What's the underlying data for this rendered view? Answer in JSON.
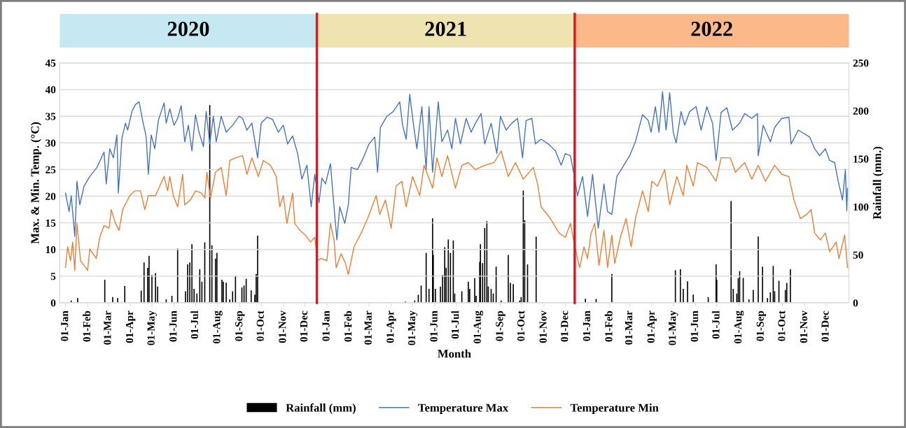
{
  "chart_data": {
    "type": "line",
    "xlabel": "Month",
    "ylabel": "Max. & Min. Temp. (°C)",
    "y2label": "Rainfall (mm.)",
    "xlim": [
      "2019-12-24",
      "2023-01-02"
    ],
    "xticks": [
      {
        "value": "2020-01-01",
        "label": "01-Jan"
      },
      {
        "value": "2020-02-01",
        "label": "01-Feb"
      },
      {
        "value": "2020-03-01",
        "label": "01-Mar"
      },
      {
        "value": "2020-04-01",
        "label": "01-Apr"
      },
      {
        "value": "2020-05-01",
        "label": "01-May"
      },
      {
        "value": "2020-06-01",
        "label": "01-Jun"
      },
      {
        "value": "2020-07-01",
        "label": "01-Jul"
      },
      {
        "value": "2020-08-01",
        "label": "01-Aug"
      },
      {
        "value": "2020-09-01",
        "label": "01-Sep"
      },
      {
        "value": "2020-10-01",
        "label": "01-Oct"
      },
      {
        "value": "2020-11-01",
        "label": "01-Nov"
      },
      {
        "value": "2020-12-01",
        "label": "01-Dec"
      },
      {
        "value": "2021-01-01",
        "label": "01-Jan"
      },
      {
        "value": "2021-02-01",
        "label": "01-Feb"
      },
      {
        "value": "2021-03-01",
        "label": "01-Mar"
      },
      {
        "value": "2021-04-01",
        "label": "01-Apr"
      },
      {
        "value": "2021-05-01",
        "label": "01-May"
      },
      {
        "value": "2021-06-01",
        "label": "01-Jun"
      },
      {
        "value": "2021-07-01",
        "label": "01-Jul"
      },
      {
        "value": "2021-08-01",
        "label": "01-Aug"
      },
      {
        "value": "2021-09-01",
        "label": "01-Sep"
      },
      {
        "value": "2021-10-01",
        "label": "01-Oct"
      },
      {
        "value": "2021-11-01",
        "label": "01-Nov"
      },
      {
        "value": "2021-12-01",
        "label": "01-Dec"
      },
      {
        "value": "2022-01-01",
        "label": "01-Jan"
      },
      {
        "value": "2022-02-01",
        "label": "01-Feb"
      },
      {
        "value": "2022-03-01",
        "label": "01-Mar"
      },
      {
        "value": "2022-04-01",
        "label": "01-Apr"
      },
      {
        "value": "2022-05-01",
        "label": "01-May"
      },
      {
        "value": "2022-06-01",
        "label": "01-Jun"
      },
      {
        "value": "2022-07-01",
        "label": "01-Jul"
      },
      {
        "value": "2022-08-01",
        "label": "01-Aug"
      },
      {
        "value": "2022-09-01",
        "label": "01-Sep"
      },
      {
        "value": "2022-10-01",
        "label": "01-Oct"
      },
      {
        "value": "2022-11-01",
        "label": "01-Nov"
      },
      {
        "value": "2022-12-01",
        "label": "01-Dec"
      }
    ],
    "ylim": [
      0,
      45
    ],
    "yticks": [
      0,
      5,
      10,
      15,
      20,
      25,
      30,
      35,
      40,
      45
    ],
    "y2lim": [
      0,
      250
    ],
    "y2ticks": [
      0,
      50,
      100,
      150,
      200,
      250
    ],
    "grid": "y",
    "legend": "bottom",
    "marker": "none",
    "ref_lines": [
      {
        "axis": "x",
        "value": "2020-12-18",
        "color": "#e8141d"
      },
      {
        "axis": "x",
        "value": "2021-12-14",
        "color": "#e8141d"
      }
    ],
    "annotations": [
      "2020",
      "2021",
      "2022"
    ],
    "series": [
      {
        "name": "Rainfall (mm)",
        "type": "bar",
        "axis": "y2",
        "color": "#000000",
        "x": [
          "2020-01-09",
          "2020-01-18",
          "2020-02-25",
          "2020-03-07",
          "2020-03-14",
          "2020-03-24",
          "2020-04-16",
          "2020-04-20",
          "2020-04-25",
          "2020-04-27",
          "2020-05-01",
          "2020-05-06",
          "2020-05-09",
          "2020-05-21",
          "2020-05-29",
          "2020-06-06",
          "2020-06-17",
          "2020-06-20",
          "2020-06-23",
          "2020-06-26",
          "2020-06-29",
          "2020-07-03",
          "2020-07-07",
          "2020-07-10",
          "2020-07-14",
          "2020-07-21",
          "2020-07-24",
          "2020-07-29",
          "2020-07-31",
          "2020-08-07",
          "2020-08-09",
          "2020-08-13",
          "2020-08-18",
          "2020-08-22",
          "2020-08-26",
          "2020-09-04",
          "2020-09-07",
          "2020-09-10",
          "2020-09-17",
          "2020-09-22",
          "2020-09-24",
          "2020-09-26",
          "2021-04-21",
          "2021-05-04",
          "2021-05-09",
          "2021-05-13",
          "2021-05-20",
          "2021-05-24",
          "2021-05-29",
          "2021-05-30",
          "2021-06-02",
          "2021-06-09",
          "2021-06-12",
          "2021-06-15",
          "2021-06-17",
          "2021-06-20",
          "2021-06-23",
          "2021-06-27",
          "2021-06-29",
          "2021-07-09",
          "2021-07-18",
          "2021-07-20",
          "2021-07-27",
          "2021-07-29",
          "2021-08-03",
          "2021-08-04",
          "2021-08-07",
          "2021-08-10",
          "2021-08-13",
          "2021-08-15",
          "2021-08-19",
          "2021-08-22",
          "2021-08-26",
          "2021-09-02",
          "2021-09-12",
          "2021-09-15",
          "2021-09-19",
          "2021-09-28",
          "2021-09-30",
          "2021-10-03",
          "2021-10-05",
          "2021-10-09",
          "2021-10-21",
          "2021-12-29",
          "2022-01-13",
          "2022-02-04",
          "2022-05-04",
          "2022-05-11",
          "2022-05-15",
          "2022-05-21",
          "2022-05-29",
          "2022-06-19",
          "2022-06-30",
          "2022-07-01",
          "2022-07-21",
          "2022-07-24",
          "2022-07-29",
          "2022-07-31",
          "2022-08-02",
          "2022-08-07",
          "2022-08-15",
          "2022-08-21",
          "2022-08-28",
          "2022-09-03",
          "2022-09-10",
          "2022-09-14",
          "2022-09-18",
          "2022-09-20",
          "2022-09-26",
          "2022-10-05",
          "2022-10-07",
          "2022-10-12"
        ],
        "values": [
          2.4,
          4.9,
          24,
          6,
          5,
          17.5,
          12.7,
          42,
          36.5,
          49,
          29,
          31,
          17,
          3.7,
          7.3,
          56.5,
          12,
          40,
          42,
          61,
          14.6,
          9.7,
          35,
          22,
          63,
          206,
          60,
          46,
          52,
          24,
          22,
          21,
          3.7,
          12,
          28,
          16,
          18,
          25,
          13,
          8.5,
          30,
          70,
          1.2,
          2.4,
          8.5,
          18,
          52,
          14.6,
          88,
          50,
          14.6,
          17,
          29,
          58,
          36.5,
          66,
          52,
          65,
          9.7,
          12,
          22,
          14.6,
          25.6,
          7.3,
          42.6,
          61,
          41.4,
          78,
          85,
          17,
          14.6,
          9.7,
          37.7,
          2.4,
          50,
          20.7,
          19.5,
          2.4,
          6,
          117,
          86,
          40,
          69,
          4.1,
          4.1,
          30,
          34,
          35,
          14.6,
          22.4,
          8.5,
          6,
          40,
          24,
          106,
          14.6,
          9.7,
          25.6,
          33,
          26,
          3.7,
          13.4,
          69,
          37.7,
          4.9,
          11,
          38.5,
          12,
          23,
          13.4,
          20.7,
          35
        ]
      },
      {
        "name": "Temperature Max",
        "color": "#4472c4",
        "x": [
          "2020-01-01",
          "2020-01-06",
          "2020-01-09",
          "2020-01-14",
          "2020-01-17",
          "2020-01-21",
          "2020-01-27",
          "2020-02-04",
          "2020-02-14",
          "2020-02-24",
          "2020-02-27",
          "2020-03-03",
          "2020-03-08",
          "2020-03-13",
          "2020-03-15",
          "2020-03-20",
          "2020-03-25",
          "2020-03-28",
          "2020-04-03",
          "2020-04-08",
          "2020-04-13",
          "2020-04-18",
          "2020-04-23",
          "2020-04-26",
          "2020-04-30",
          "2020-05-05",
          "2020-05-10",
          "2020-05-18",
          "2020-05-21",
          "2020-05-26",
          "2020-06-01",
          "2020-06-06",
          "2020-06-11",
          "2020-06-16",
          "2020-06-21",
          "2020-06-26",
          "2020-07-01",
          "2020-07-06",
          "2020-07-12",
          "2020-07-16",
          "2020-07-21",
          "2020-07-26",
          "2020-07-30",
          "2020-08-06",
          "2020-08-13",
          "2020-08-22",
          "2020-08-31",
          "2020-09-05",
          "2020-09-11",
          "2020-09-18",
          "2020-09-26",
          "2020-10-01",
          "2020-10-09",
          "2020-10-17",
          "2020-10-25",
          "2020-11-01",
          "2020-11-07",
          "2020-11-14",
          "2020-11-21",
          "2020-11-27",
          "2020-12-04",
          "2020-12-10",
          "2020-12-15",
          "2020-12-21",
          "2020-12-25",
          "2020-12-30",
          "2021-01-06",
          "2021-01-11",
          "2021-01-15",
          "2021-01-19",
          "2021-01-26",
          "2021-01-31",
          "2021-02-04",
          "2021-02-13",
          "2021-02-21",
          "2021-03-01",
          "2021-03-09",
          "2021-03-13",
          "2021-03-17",
          "2021-03-26",
          "2021-04-04",
          "2021-04-13",
          "2021-04-17",
          "2021-04-22",
          "2021-04-27",
          "2021-05-02",
          "2021-05-07",
          "2021-05-14",
          "2021-05-20",
          "2021-05-24",
          "2021-05-29",
          "2021-06-06",
          "2021-06-11",
          "2021-06-19",
          "2021-06-25",
          "2021-06-30",
          "2021-07-07",
          "2021-07-15",
          "2021-07-22",
          "2021-07-28",
          "2021-08-05",
          "2021-08-10",
          "2021-08-19",
          "2021-08-27",
          "2021-09-01",
          "2021-09-09",
          "2021-09-17",
          "2021-09-25",
          "2021-10-02",
          "2021-10-07",
          "2021-10-15",
          "2021-10-20",
          "2021-10-28",
          "2021-11-07",
          "2021-11-17",
          "2021-11-25",
          "2021-12-01",
          "2021-12-08",
          "2021-12-13",
          "2021-12-18",
          "2021-12-25",
          "2022-01-01",
          "2022-01-08",
          "2022-01-16",
          "2022-01-24",
          "2022-01-29",
          "2022-02-04",
          "2022-02-11",
          "2022-02-19",
          "2022-03-01",
          "2022-03-09",
          "2022-03-19",
          "2022-03-27",
          "2022-03-31",
          "2022-04-06",
          "2022-04-11",
          "2022-04-16",
          "2022-04-21",
          "2022-04-26",
          "2022-05-01",
          "2022-05-05",
          "2022-05-12",
          "2022-05-17",
          "2022-05-24",
          "2022-06-02",
          "2022-06-09",
          "2022-06-17",
          "2022-06-25",
          "2022-06-30",
          "2022-07-07",
          "2022-07-15",
          "2022-07-23",
          "2022-08-02",
          "2022-08-09",
          "2022-08-19",
          "2022-08-27",
          "2022-08-28",
          "2022-09-04",
          "2022-09-14",
          "2022-09-20",
          "2022-09-30",
          "2022-10-10",
          "2022-10-13",
          "2022-10-23",
          "2022-11-08",
          "2022-11-15",
          "2022-11-22",
          "2022-11-30",
          "2022-12-06",
          "2022-12-13",
          "2022-12-18",
          "2022-12-24",
          "2022-12-28",
          "2022-12-30",
          "2022-12-31"
        ],
        "values": [
          20.6,
          17.1,
          20.1,
          12.5,
          22.8,
          18.4,
          21.9,
          23.7,
          25.4,
          28.3,
          22.3,
          28.9,
          27.2,
          31.5,
          20.6,
          30.9,
          33.7,
          32.4,
          35.9,
          37.2,
          37.7,
          34.2,
          31.1,
          24.1,
          31.5,
          28.9,
          34.2,
          37.5,
          33.7,
          36.4,
          33.3,
          34.6,
          37.0,
          30.2,
          33.3,
          28.5,
          35.3,
          32.0,
          29.3,
          35.9,
          29.8,
          35.0,
          30.2,
          35.0,
          32.0,
          33.3,
          35.0,
          34.6,
          32.4,
          33.7,
          27.2,
          33.7,
          34.8,
          34.4,
          32.0,
          33.3,
          29.8,
          31.3,
          28.0,
          23.2,
          25.8,
          18.0,
          24.1,
          18.8,
          23.4,
          22.3,
          26.1,
          18.0,
          11.8,
          18.0,
          14.9,
          18.4,
          25.4,
          25.0,
          27.2,
          29.8,
          31.1,
          24.5,
          32.9,
          35.0,
          35.9,
          37.7,
          33.3,
          30.7,
          39.1,
          33.7,
          28.9,
          36.8,
          25.0,
          36.8,
          24.5,
          37.7,
          30.2,
          32.4,
          28.9,
          34.6,
          29.8,
          34.6,
          32.0,
          33.7,
          35.5,
          29.8,
          33.7,
          28.0,
          35.0,
          32.4,
          33.7,
          34.6,
          27.2,
          34.2,
          34.6,
          29.8,
          30.7,
          29.8,
          28.5,
          25.8,
          28.0,
          27.6,
          24.1,
          20.1,
          23.7,
          16.2,
          24.1,
          14.0,
          22.3,
          17.1,
          16.6,
          23.7,
          25.4,
          27.6,
          30.2,
          35.3,
          34.2,
          32.0,
          36.8,
          32.0,
          39.6,
          32.4,
          39.4,
          32.0,
          30.0,
          35.9,
          33.3,
          35.9,
          36.8,
          32.4,
          36.8,
          33.7,
          26.7,
          35.7,
          36.6,
          32.4,
          33.7,
          35.5,
          34.6,
          35.5,
          27.6,
          33.3,
          30.2,
          32.9,
          34.6,
          34.8,
          29.8,
          32.4,
          31.1,
          28.9,
          27.6,
          28.9,
          26.7,
          26.3,
          22.8,
          19.3,
          25.0,
          17.3,
          21.5
        ]
      },
      {
        "name": "Temperature Min",
        "color": "#ed7d31",
        "x": [
          "2020-01-01",
          "2020-01-04",
          "2020-01-08",
          "2020-01-11",
          "2020-01-14",
          "2020-01-17",
          "2020-01-22",
          "2020-01-27",
          "2020-02-01",
          "2020-02-04",
          "2020-02-13",
          "2020-02-18",
          "2020-02-24",
          "2020-03-02",
          "2020-03-05",
          "2020-03-11",
          "2020-03-16",
          "2020-03-21",
          "2020-03-31",
          "2020-04-07",
          "2020-04-15",
          "2020-04-21",
          "2020-04-26",
          "2020-05-06",
          "2020-05-18",
          "2020-05-23",
          "2020-05-26",
          "2020-05-31",
          "2020-06-06",
          "2020-06-13",
          "2020-06-16",
          "2020-06-24",
          "2020-07-01",
          "2020-07-09",
          "2020-07-14",
          "2020-07-17",
          "2020-07-22",
          "2020-07-29",
          "2020-08-06",
          "2020-08-13",
          "2020-08-18",
          "2020-08-26",
          "2020-09-05",
          "2020-09-11",
          "2020-09-18",
          "2020-09-27",
          "2020-10-04",
          "2020-10-14",
          "2020-10-22",
          "2020-10-27",
          "2020-11-01",
          "2020-11-06",
          "2020-11-14",
          "2020-11-17",
          "2020-11-24",
          "2020-12-02",
          "2020-12-09",
          "2020-12-15",
          "2020-12-19",
          "2020-12-24",
          "2021-01-01",
          "2021-01-06",
          "2021-01-11",
          "2021-01-14",
          "2021-01-21",
          "2021-01-27",
          "2021-01-31",
          "2021-02-08",
          "2021-02-18",
          "2021-02-27",
          "2021-03-11",
          "2021-03-16",
          "2021-03-24",
          "2021-04-01",
          "2021-04-08",
          "2021-04-16",
          "2021-04-22",
          "2021-05-01",
          "2021-05-11",
          "2021-05-17",
          "2021-05-29",
          "2021-06-04",
          "2021-06-11",
          "2021-06-19",
          "2021-06-30",
          "2021-07-09",
          "2021-07-18",
          "2021-07-28",
          "2021-08-10",
          "2021-08-23",
          "2021-09-02",
          "2021-09-12",
          "2021-09-22",
          "2021-10-03",
          "2021-10-17",
          "2021-10-23",
          "2021-10-28",
          "2021-11-10",
          "2021-11-22",
          "2021-12-01",
          "2021-12-08",
          "2021-12-13",
          "2021-12-17",
          "2021-12-21",
          "2021-12-27",
          "2022-01-01",
          "2022-01-06",
          "2022-01-11",
          "2022-01-17",
          "2022-01-24",
          "2022-01-29",
          "2022-02-04",
          "2022-02-08",
          "2022-02-16",
          "2022-02-24",
          "2022-03-03",
          "2022-03-09",
          "2022-03-19",
          "2022-03-27",
          "2022-04-01",
          "2022-04-09",
          "2022-04-19",
          "2022-04-26",
          "2022-05-06",
          "2022-05-15",
          "2022-05-20",
          "2022-05-29",
          "2022-06-04",
          "2022-06-17",
          "2022-06-30",
          "2022-07-07",
          "2022-07-20",
          "2022-07-27",
          "2022-08-09",
          "2022-08-19",
          "2022-08-28",
          "2022-09-07",
          "2022-09-20",
          "2022-09-30",
          "2022-10-10",
          "2022-10-17",
          "2022-10-26",
          "2022-11-04",
          "2022-11-10",
          "2022-11-15",
          "2022-11-23",
          "2022-11-30",
          "2022-12-06",
          "2022-12-15",
          "2022-12-19",
          "2022-12-27",
          "2022-12-31"
        ],
        "values": [
          6.6,
          10.5,
          7.9,
          11.4,
          6.1,
          14.9,
          7.9,
          7.0,
          6.1,
          10.1,
          8.3,
          12.3,
          14.5,
          14.0,
          17.5,
          14.9,
          13.6,
          17.5,
          20.1,
          21.0,
          21.0,
          17.5,
          20.1,
          20.1,
          23.7,
          21.0,
          23.7,
          20.1,
          18.0,
          24.1,
          18.4,
          19.3,
          21.0,
          20.6,
          19.7,
          24.5,
          19.7,
          24.5,
          25.4,
          20.1,
          26.7,
          27.2,
          27.6,
          24.1,
          27.2,
          23.7,
          26.7,
          25.8,
          23.7,
          18.0,
          20.1,
          14.9,
          20.6,
          14.9,
          13.6,
          12.7,
          11.4,
          12.3,
          7.9,
          8.3,
          7.9,
          14.9,
          11.8,
          6.6,
          9.2,
          7.4,
          5.3,
          10.5,
          13.1,
          15.8,
          20.1,
          16.6,
          19.3,
          14.0,
          21.9,
          22.8,
          18.0,
          23.7,
          20.1,
          25.8,
          21.5,
          27.2,
          23.7,
          27.6,
          21.5,
          25.8,
          26.3,
          25.0,
          25.8,
          26.3,
          28.5,
          23.7,
          26.3,
          23.2,
          25.4,
          22.3,
          18.0,
          15.8,
          13.1,
          12.3,
          14.9,
          11.4,
          8.8,
          6.6,
          10.5,
          8.3,
          13.1,
          14.9,
          7.0,
          13.6,
          6.6,
          12.7,
          7.4,
          12.3,
          15.8,
          10.5,
          15.8,
          21.0,
          17.1,
          22.8,
          21.9,
          25.0,
          18.4,
          23.7,
          20.1,
          25.8,
          21.9,
          26.3,
          25.4,
          22.8,
          27.2,
          27.2,
          24.5,
          26.3,
          23.2,
          25.8,
          22.8,
          25.8,
          24.1,
          23.7,
          19.3,
          15.8,
          16.6,
          17.5,
          13.1,
          11.8,
          13.1,
          9.6,
          11.4,
          8.3,
          12.7,
          6.6
        ]
      }
    ]
  }
}
